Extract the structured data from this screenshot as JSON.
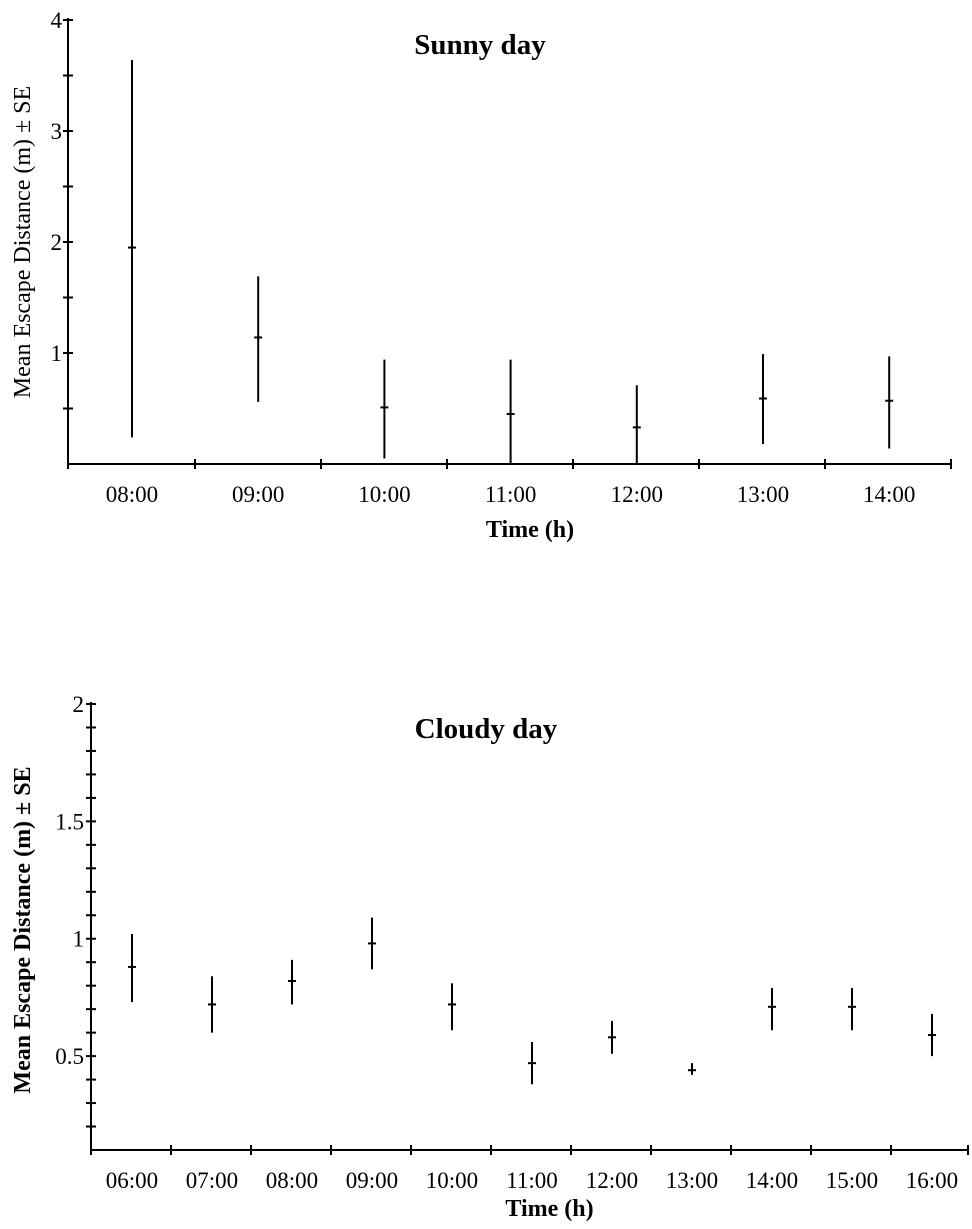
{
  "chart_data": [
    {
      "type": "scatter",
      "title": "Sunny day",
      "xlabel": "Time (h)",
      "ylabel": "Mean Escape Distance (m) ± SE",
      "ylim": [
        0,
        4
      ],
      "y_ticks": [
        "1",
        "2",
        "3",
        "4"
      ],
      "categories": [
        "08:00",
        "09:00",
        "10:00",
        "11:00",
        "12:00",
        "13:00",
        "14:00"
      ],
      "series": [
        {
          "mean": [
            1.95,
            1.14,
            0.51,
            0.45,
            0.33,
            0.59,
            0.57
          ],
          "lower": [
            0.24,
            0.56,
            0.05,
            0.0,
            0.0,
            0.18,
            0.14
          ],
          "upper": [
            3.64,
            1.69,
            0.94,
            0.94,
            0.71,
            0.99,
            0.97
          ]
        }
      ]
    },
    {
      "type": "scatter",
      "title": "Cloudy day",
      "xlabel": "Time (h)",
      "ylabel": "Mean Escape Distance (m) ± SE",
      "ylim": [
        0.1,
        2
      ],
      "y_ticks": [
        "0.5",
        "1",
        "1.5",
        "2"
      ],
      "categories": [
        "06:00",
        "07:00",
        "08:00",
        "09:00",
        "10:00",
        "11:00",
        "12:00",
        "13:00",
        "14:00",
        "15:00",
        "16:00"
      ],
      "series": [
        {
          "mean": [
            0.88,
            0.72,
            0.82,
            0.98,
            0.72,
            0.47,
            0.58,
            0.44,
            0.71,
            0.71,
            0.59
          ],
          "lower": [
            0.73,
            0.6,
            0.72,
            0.87,
            0.61,
            0.38,
            0.51,
            0.42,
            0.61,
            0.61,
            0.5
          ],
          "upper": [
            1.02,
            0.84,
            0.91,
            1.09,
            0.81,
            0.56,
            0.65,
            0.47,
            0.79,
            0.79,
            0.68
          ]
        }
      ]
    }
  ]
}
